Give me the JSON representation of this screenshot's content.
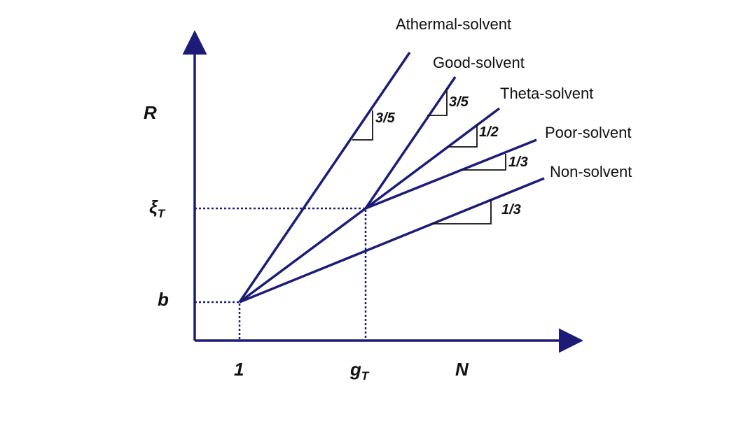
{
  "axes": {
    "y_label": "R",
    "x_label": "N",
    "y_ticks": [
      {
        "symbol": "b"
      },
      {
        "symbol": "ξ",
        "subscript": "T"
      }
    ],
    "x_ticks": [
      {
        "symbol": "1"
      },
      {
        "symbol": "g",
        "subscript": "T"
      }
    ]
  },
  "lines": [
    {
      "label": "Athermal-solvent",
      "slope": "3/5"
    },
    {
      "label": "Good-solvent",
      "slope": "3/5"
    },
    {
      "label": "Theta-solvent",
      "slope": "1/2"
    },
    {
      "label": "Poor-solvent",
      "slope": "1/3"
    },
    {
      "label": "Non-solvent",
      "slope": "1/3"
    }
  ]
}
